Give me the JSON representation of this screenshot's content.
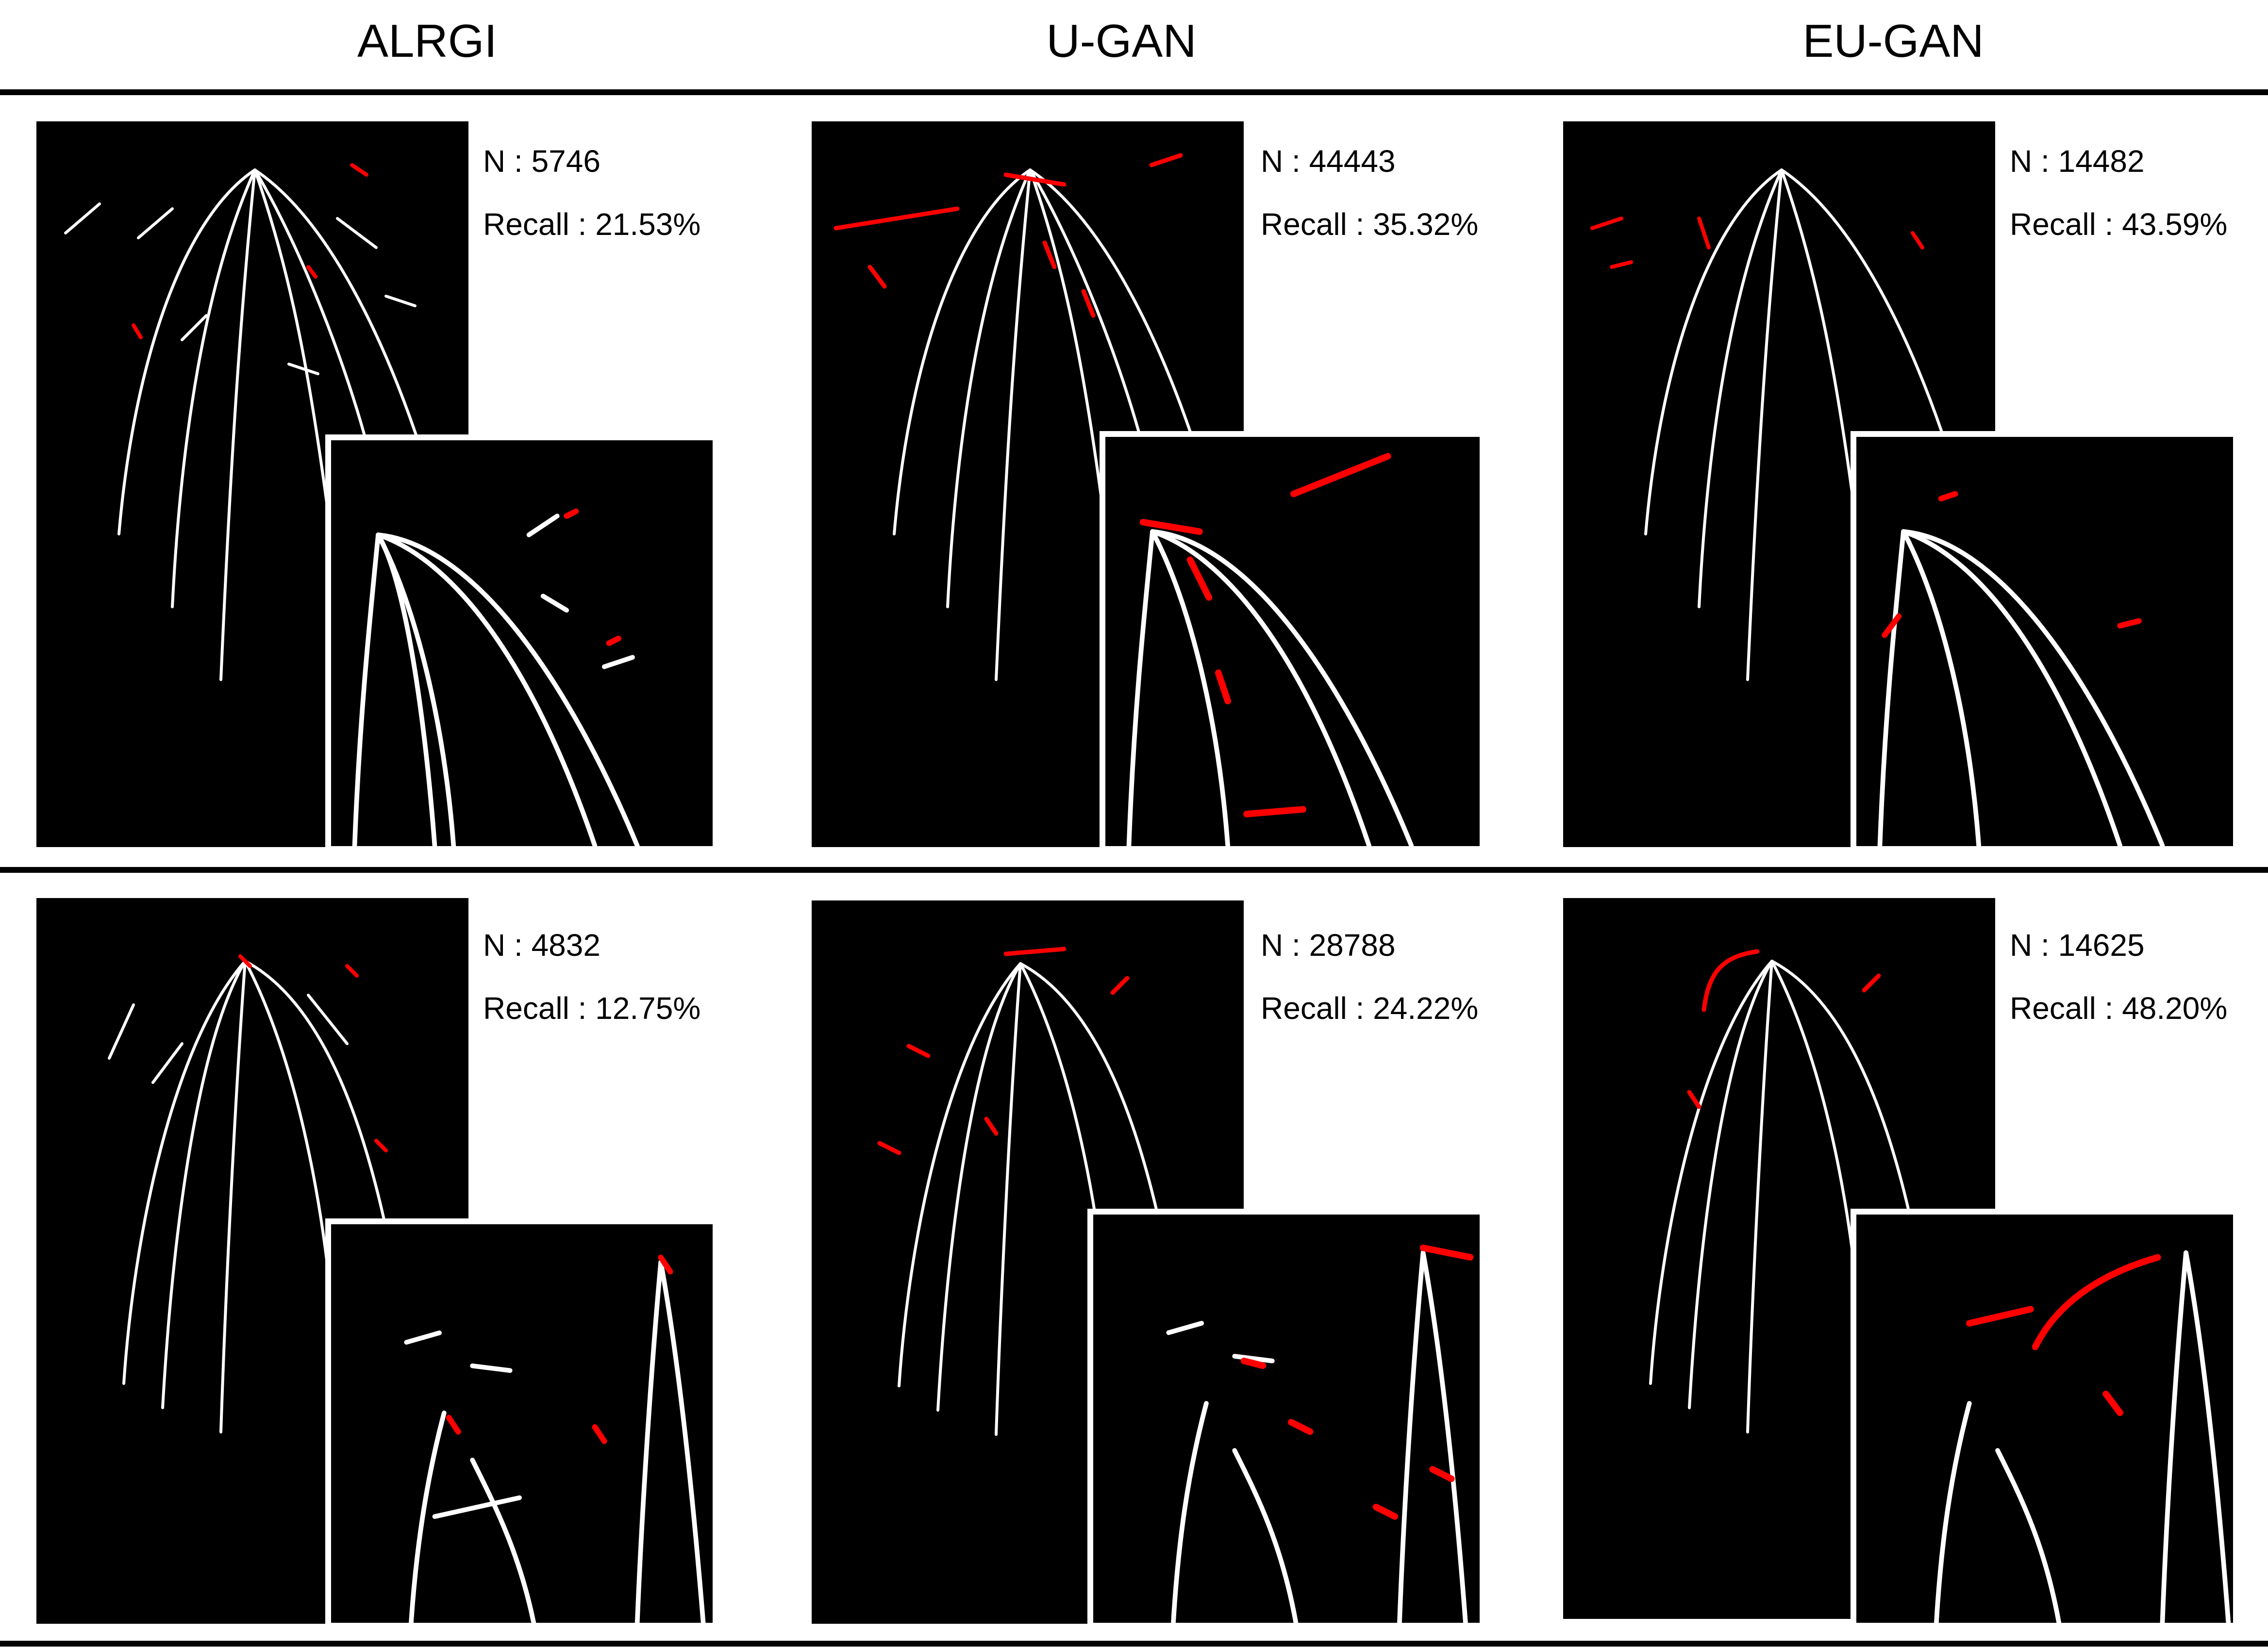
{
  "columns": [
    "ALRGI",
    "U-GAN",
    "EU-GAN"
  ],
  "rows": [
    [
      {
        "method": "ALRGI",
        "n": "N : 5746",
        "recall": "Recall : 21.53%"
      },
      {
        "method": "U-GAN",
        "n": "N : 44443",
        "recall": "Recall : 35.32%"
      },
      {
        "method": "EU-GAN",
        "n": "N : 14482",
        "recall": "Recall : 43.59%"
      }
    ],
    [
      {
        "method": "ALRGI",
        "n": "N : 4832",
        "recall": "Recall : 12.75%"
      },
      {
        "method": "U-GAN",
        "n": "N : 28788",
        "recall": "Recall : 24.22%"
      },
      {
        "method": "EU-GAN",
        "n": "N : 14625",
        "recall": "Recall : 48.20%"
      }
    ]
  ],
  "colors": {
    "background": "#000000",
    "root": "#ffffff",
    "detected": "#ff0000"
  }
}
